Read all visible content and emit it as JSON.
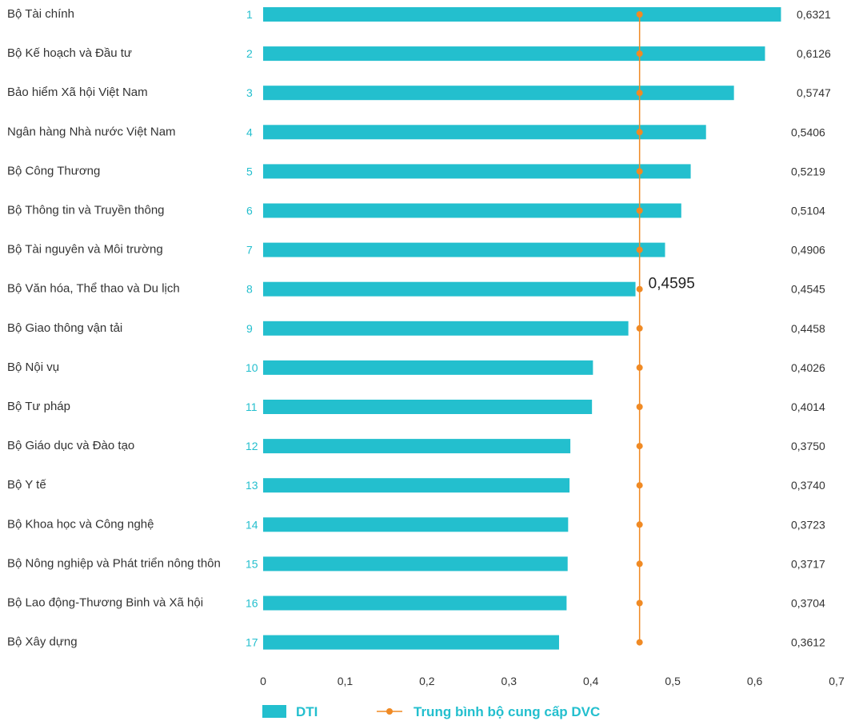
{
  "colors": {
    "bar": "#23BFCE",
    "line": "#F08A24",
    "rank": "#23BFCE",
    "legend_dti_text": "#23BFCE",
    "legend_line_text": "#23BFCE"
  },
  "chart_data": {
    "type": "bar",
    "orientation": "horizontal",
    "categories": [
      "Bộ Tài chính",
      "Bộ Kế hoạch và Đầu tư",
      "Bảo hiểm Xã hội Việt Nam",
      "Ngân hàng Nhà nước Việt Nam",
      "Bộ Công Thương",
      "Bộ Thông tin và Truyền thông",
      "Bộ Tài nguyên và Môi trường",
      "Bộ Văn hóa, Thể thao và Du lịch",
      "Bộ Giao thông vận tải",
      "Bộ Nội vụ",
      "Bộ Tư pháp",
      "Bộ Giáo dục và Đào tạo",
      "Bộ Y tế",
      "Bộ Khoa học và Công nghệ",
      "Bộ Nông nghiệp và Phát triển nông thôn",
      "Bộ Lao động-Thương Binh và Xã hội",
      "Bộ Xây dựng"
    ],
    "ranks": [
      "1",
      "2",
      "3",
      "4",
      "5",
      "6",
      "7",
      "8",
      "9",
      "10",
      "11",
      "12",
      "13",
      "14",
      "15",
      "16",
      "17"
    ],
    "values": [
      0.6321,
      0.6126,
      0.5747,
      0.5406,
      0.5219,
      0.5104,
      0.4906,
      0.4545,
      0.4458,
      0.4026,
      0.4014,
      0.375,
      0.374,
      0.3723,
      0.3717,
      0.3704,
      0.3612
    ],
    "value_labels": [
      "0,6321",
      "0,6126",
      "0,5747",
      "0,5406",
      "0,5219",
      "0,5104",
      "0,4906",
      "0,4545",
      "0,4458",
      "0,4026",
      "0,4014",
      "0,3750",
      "0,3740",
      "0,3723",
      "0,3717",
      "0,3704",
      "0,3612"
    ],
    "series": [
      {
        "name": "DTI",
        "type": "bar"
      },
      {
        "name": "Trung bình bộ cung cấp DVC",
        "type": "line",
        "value": 0.4595
      }
    ],
    "average_label": "0,4595",
    "xlim": [
      0,
      0.7
    ],
    "ticks": [
      0,
      0.1,
      0.2,
      0.3,
      0.4,
      0.5,
      0.6,
      0.7
    ],
    "tick_labels": [
      "0",
      "0,1",
      "0,2",
      "0,3",
      "0,4",
      "0,5",
      "0,6",
      "0,7"
    ],
    "grid": false,
    "legend": "bottom"
  }
}
